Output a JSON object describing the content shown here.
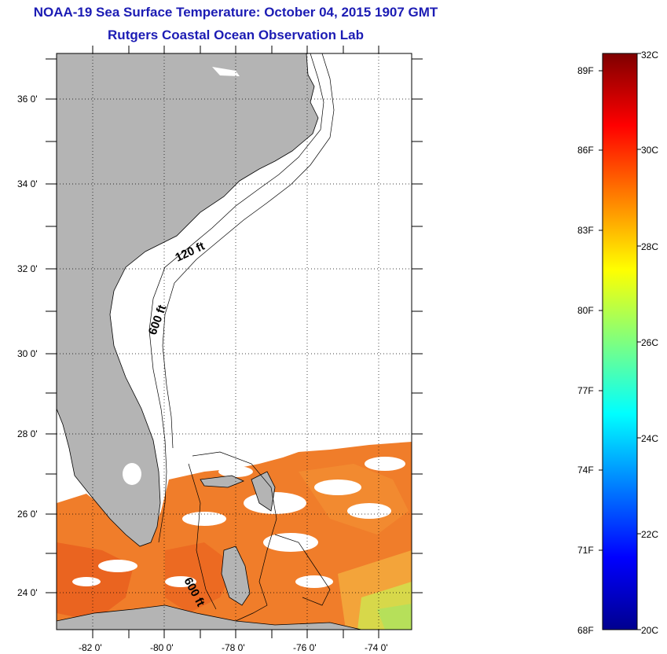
{
  "header": {
    "title": "NOAA-19 Sea Surface Temperature:  October 04, 2015 1907 GMT",
    "subtitle": "Rutgers Coastal Ocean Observation Lab"
  },
  "map": {
    "lon_range": [
      -83.0,
      -73.0
    ],
    "lat_range": [
      23.0,
      37.2
    ],
    "lon_ticks": [
      "-82 0'",
      "-80 0'",
      "-78 0'",
      "-76 0'",
      "-74 0'"
    ],
    "lat_ticks": [
      "36 0'",
      "34 0'",
      "32 0'",
      "30 0'",
      "28 0'",
      "26 0'",
      "24 0'"
    ],
    "contour_labels": [
      "120 ft",
      "600 ft",
      "600 ft"
    ],
    "land_color": "#b4b4b4",
    "gridlines": "dotted"
  },
  "colorbar": {
    "celsius_range": [
      20,
      32
    ],
    "celsius_labels": [
      "32C",
      "30C",
      "28C",
      "26C",
      "24C",
      "22C",
      "20C"
    ],
    "fahrenheit_labels": [
      "89F",
      "86F",
      "83F",
      "80F",
      "77F",
      "74F",
      "71F",
      "68F"
    ],
    "colormap": "jet"
  }
}
